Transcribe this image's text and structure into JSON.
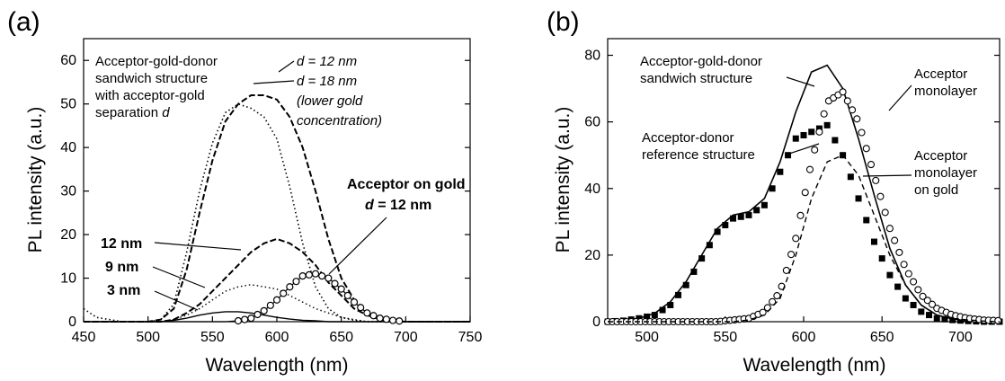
{
  "panels": {
    "a": {
      "label": "(a)"
    },
    "b": {
      "label": "(b)"
    }
  },
  "chart_data": [
    {
      "type": "line",
      "xlabel": "Wavelength (nm)",
      "ylabel": "PL intensity (a.u.)",
      "xlim": [
        450,
        750
      ],
      "ylim": [
        0,
        65
      ],
      "xticks": [
        450,
        500,
        550,
        600,
        650,
        700,
        750
      ],
      "yticks": [
        0,
        10,
        20,
        30,
        40,
        50,
        60
      ],
      "grid": false,
      "x": [
        450,
        460,
        470,
        480,
        490,
        500,
        510,
        520,
        530,
        540,
        550,
        560,
        570,
        580,
        590,
        600,
        610,
        620,
        630,
        640,
        650,
        660,
        670,
        680,
        690,
        700,
        710,
        720,
        730,
        740,
        750
      ],
      "series": [
        {
          "values": [
            3,
            1,
            0.5,
            0,
            0,
            0,
            0.5,
            4,
            16,
            30,
            41,
            48,
            50,
            49,
            47,
            42,
            31,
            18,
            8,
            3,
            1,
            0.3,
            0,
            0,
            0,
            0,
            0,
            0,
            0,
            0,
            0
          ]
        },
        {
          "values": [
            0,
            0,
            0,
            0,
            0,
            0,
            0.5,
            3,
            12,
            25,
            37,
            46,
            50,
            52,
            52,
            51,
            47,
            40,
            30,
            19,
            10,
            5,
            2,
            1,
            0.3,
            0,
            0,
            0,
            0,
            0,
            0
          ]
        },
        {
          "values": [
            0,
            0,
            0,
            0,
            0,
            0,
            0,
            0.5,
            2,
            4,
            7,
            10,
            13,
            16,
            18,
            19,
            18,
            16,
            13,
            9,
            6,
            3,
            1.5,
            0.5,
            0,
            0,
            0,
            0,
            0,
            0,
            0
          ]
        },
        {
          "values": [
            0,
            0,
            0,
            0,
            0,
            0,
            0,
            0.5,
            1.5,
            3,
            5,
            7,
            8,
            8.5,
            8,
            7.5,
            6,
            4.5,
            3,
            2,
            1,
            0.5,
            0,
            0,
            0,
            0,
            0,
            0,
            0,
            0,
            0
          ]
        },
        {
          "values": [
            0,
            0,
            0,
            0,
            0,
            0,
            0,
            0.3,
            0.8,
            1.5,
            2,
            2.3,
            2.3,
            2,
            1.5,
            1,
            0.6,
            0.3,
            0.2,
            0,
            0,
            0,
            0,
            0,
            0,
            0,
            0,
            0,
            0,
            0,
            0
          ]
        },
        {
          "values": [
            0,
            0,
            0,
            0,
            0,
            0,
            0,
            0,
            0,
            0,
            0,
            0,
            0.2,
            0.8,
            2.5,
            5,
            8,
            10.5,
            11,
            10,
            7.5,
            4.5,
            2,
            0.8,
            0.3,
            0,
            0,
            0,
            0,
            0,
            0
          ]
        }
      ],
      "annotations": {
        "sandwich": [
          "Acceptor-gold-donor",
          "sandwich structure",
          "with acceptor-gold",
          "separation"
        ],
        "sandwich_d": "d",
        "d12_var": "d",
        "d12_rest": " = 12 nm",
        "d18_var": "d",
        "d18_rest": " = 18 nm",
        "lower_gold": [
          "(lower gold",
          "concentration)"
        ],
        "acceptor_gold": "Acceptor on gold",
        "acceptor_gold_var": "d",
        "acceptor_gold_rest": " = 12 nm",
        "nm12": "12 nm",
        "nm9": "9 nm",
        "nm3": "3 nm"
      }
    },
    {
      "type": "line",
      "xlabel": "Wavelength (nm)",
      "ylabel": "PL intensity (a.u.)",
      "xlim": [
        475,
        725
      ],
      "ylim": [
        0,
        85
      ],
      "xticks": [
        500,
        550,
        600,
        650,
        700
      ],
      "yticks": [
        0,
        20,
        40,
        60,
        80
      ],
      "grid": false,
      "x": [
        475,
        485,
        495,
        505,
        515,
        525,
        535,
        545,
        555,
        565,
        575,
        585,
        595,
        605,
        615,
        625,
        635,
        645,
        655,
        665,
        675,
        685,
        695,
        705,
        715,
        725
      ],
      "series": [
        {
          "values": [
            0,
            0.5,
            1,
            2.5,
            6,
            12,
            20,
            28,
            32,
            33,
            37,
            48,
            63,
            75,
            77,
            70,
            55,
            38,
            22,
            11,
            5,
            2,
            0.8,
            0.3,
            0,
            0
          ]
        },
        {
          "values": [
            0,
            0.3,
            1,
            2,
            5,
            11,
            19,
            27,
            31,
            32,
            35,
            45,
            55,
            57,
            59,
            50,
            37,
            24,
            14,
            7,
            3,
            1,
            0.5,
            0.2,
            0,
            0
          ]
        },
        {
          "values": [
            0,
            0,
            0,
            0,
            0,
            0,
            0,
            0,
            0.5,
            1,
            3,
            9,
            25,
            48,
            66,
            69,
            60,
            44,
            28,
            16,
            8,
            4,
            2,
            1,
            0.5,
            0.3
          ]
        },
        {
          "values": [
            0,
            0,
            0,
            0,
            0,
            0,
            0,
            0,
            0,
            0.5,
            2,
            7,
            20,
            37,
            48,
            50,
            44,
            32,
            20,
            11,
            5,
            2,
            1,
            0.5,
            0.2,
            0
          ]
        }
      ],
      "annotations": {
        "sandwich": [
          "Acceptor-gold-donor",
          "sandwich structure"
        ],
        "reference": [
          "Acceptor-donor",
          "reference structure"
        ],
        "acceptor_mono": [
          "Acceptor",
          "monolayer"
        ],
        "acceptor_mono_gold": [
          "Acceptor",
          "monolayer",
          "on gold"
        ]
      }
    }
  ]
}
